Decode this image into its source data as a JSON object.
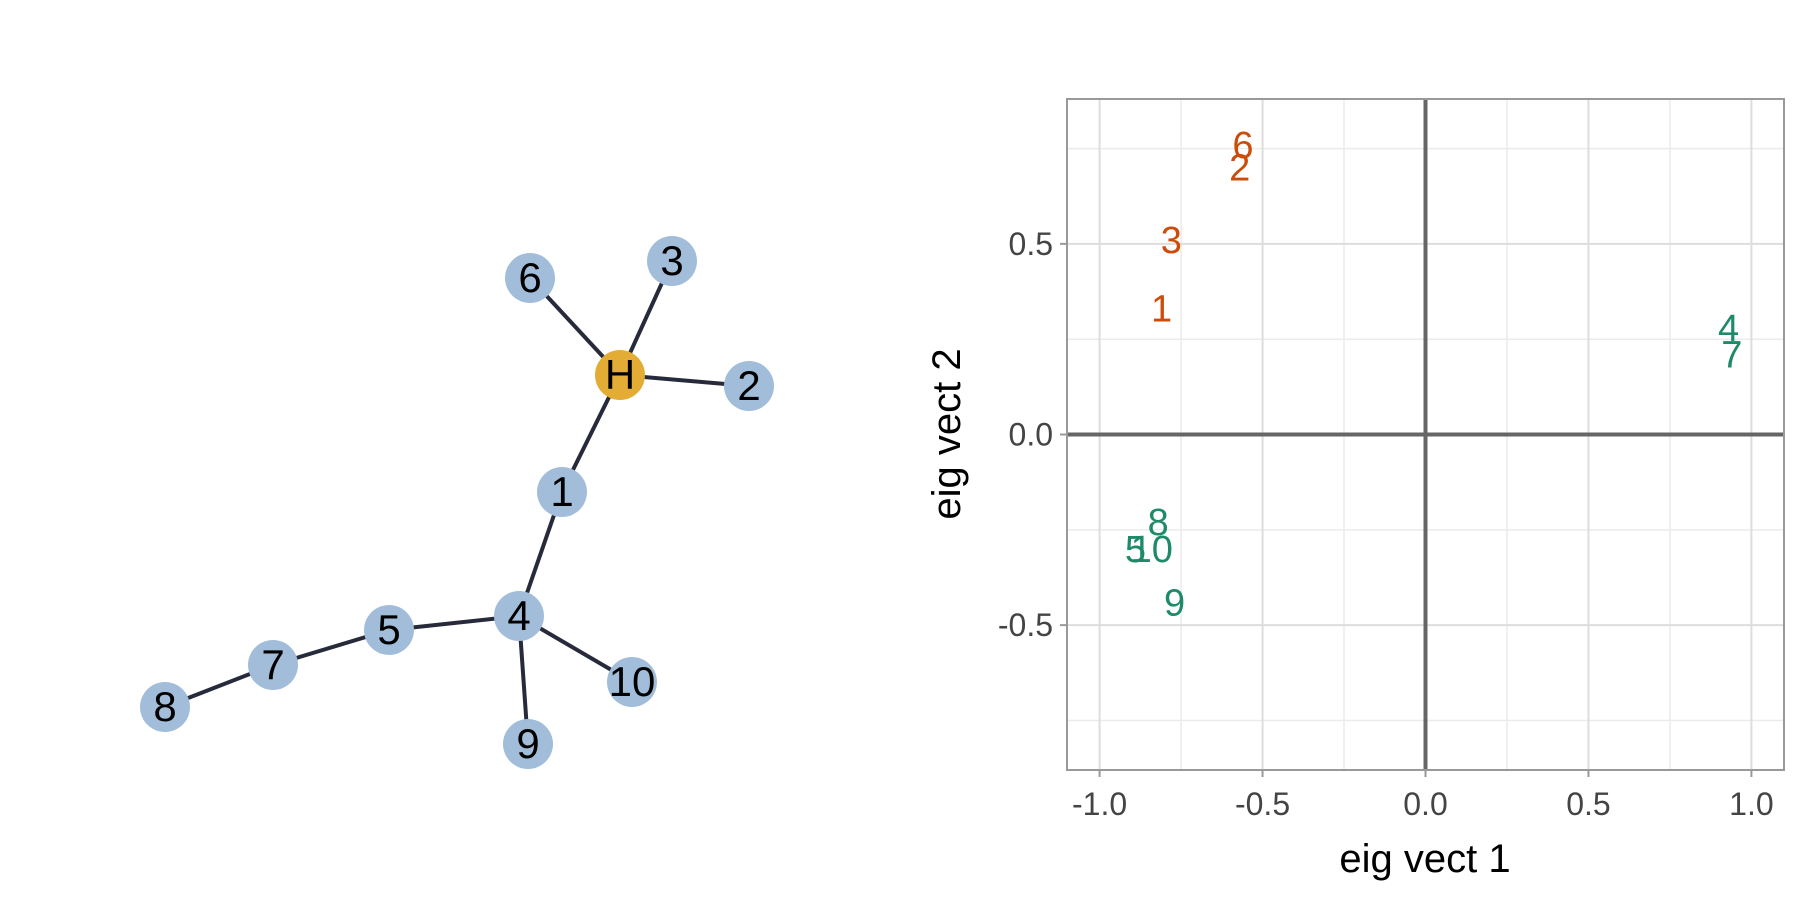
{
  "colors": {
    "node_fill": "#a2bdd9",
    "hub_fill": "#e3ad35",
    "edge": "#262a3a",
    "group_a": "#cc4c0b",
    "group_b": "#1d8b6a",
    "axis_zero": "#666666",
    "grid": "#dddddd",
    "panel_border": "#999999",
    "tick_text": "#444444",
    "label_text": "#000000"
  },
  "network": {
    "nodes": [
      "H",
      "1",
      "2",
      "3",
      "4",
      "5",
      "6",
      "7",
      "8",
      "9",
      "10"
    ],
    "hub": "H",
    "edges": [
      [
        "H",
        "6"
      ],
      [
        "H",
        "3"
      ],
      [
        "H",
        "2"
      ],
      [
        "H",
        "1"
      ],
      [
        "1",
        "4"
      ],
      [
        "4",
        "5"
      ],
      [
        "4",
        "9"
      ],
      [
        "4",
        "10"
      ],
      [
        "5",
        "7"
      ],
      [
        "7",
        "8"
      ]
    ]
  },
  "chart_data": {
    "type": "scatter",
    "marker": "text-label",
    "xlabel": "eig vect 1",
    "ylabel": "eig vect 2",
    "xlim": [
      -1.1,
      1.1
    ],
    "ylim": [
      -0.88,
      0.88
    ],
    "xticks": [
      -1.0,
      -0.5,
      0.0,
      0.5,
      1.0
    ],
    "xtick_labels": [
      "-1.0",
      "-0.5",
      "0.0",
      "0.5",
      "1.0"
    ],
    "yticks": [
      -0.5,
      0.0,
      0.5
    ],
    "ytick_labels": [
      "-0.5",
      "0.0",
      "0.5"
    ],
    "grid": true,
    "zero_lines": true,
    "series": [
      {
        "group": "a",
        "points": [
          {
            "label": "6",
            "x": -0.56,
            "y": 0.76
          },
          {
            "label": "2",
            "x": -0.57,
            "y": 0.7
          },
          {
            "label": "3",
            "x": -0.78,
            "y": 0.51
          },
          {
            "label": "1",
            "x": -0.81,
            "y": 0.33
          }
        ]
      },
      {
        "group": "b",
        "points": [
          {
            "label": "4",
            "x": 0.93,
            "y": 0.28
          },
          {
            "label": "7",
            "x": 0.94,
            "y": 0.21
          },
          {
            "label": "8",
            "x": -0.82,
            "y": -0.23
          },
          {
            "label": "5",
            "x": -0.89,
            "y": -0.3
          },
          {
            "label": "10",
            "x": -0.84,
            "y": -0.3
          },
          {
            "label": "9",
            "x": -0.77,
            "y": -0.44
          }
        ]
      }
    ]
  }
}
